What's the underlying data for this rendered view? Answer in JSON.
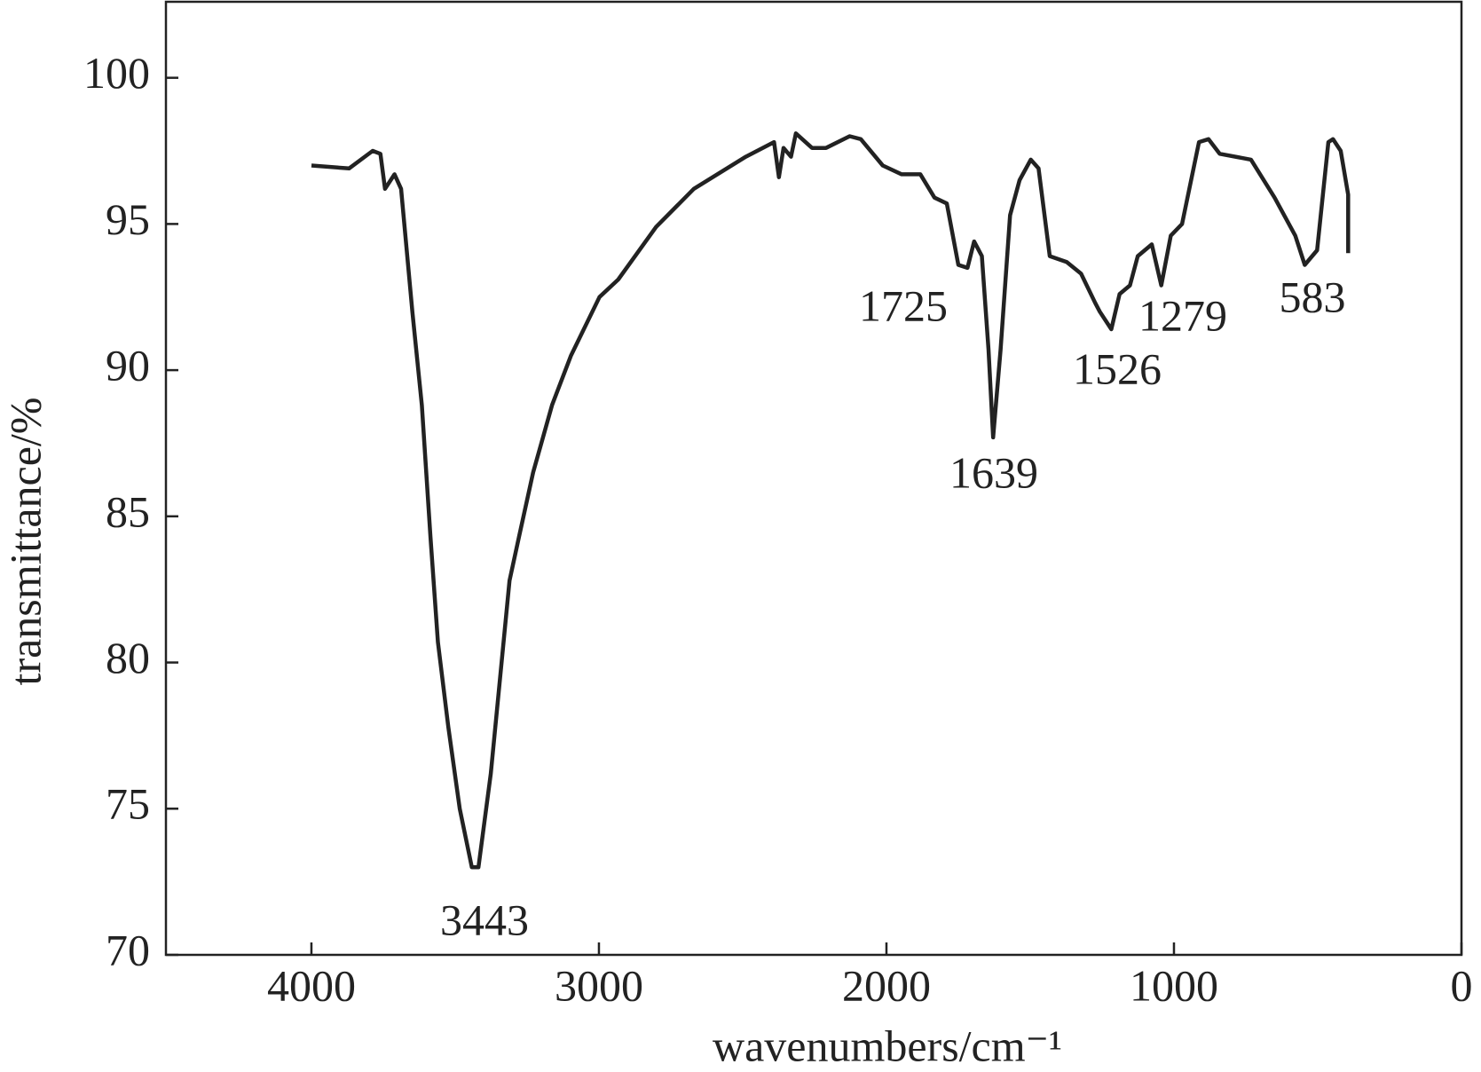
{
  "chart_data": {
    "type": "line",
    "xlabel": "wavenumbers/cm⁻¹",
    "ylabel": "transmittance/%",
    "xlim": [
      4506,
      0
    ],
    "ylim": [
      70,
      102.6
    ],
    "xticks": [
      4000,
      3000,
      2000,
      1000,
      0
    ],
    "yticks": [
      70,
      75,
      80,
      85,
      90,
      95,
      100
    ],
    "x_reversed": true,
    "grid": false,
    "color": "#222222",
    "x": [
      4000,
      3869,
      3787,
      3760,
      3744,
      3711,
      3688,
      3649,
      3616,
      3586,
      3560,
      3524,
      3484,
      3442,
      3419,
      3376,
      3311,
      3278,
      3229,
      3163,
      3097,
      2998,
      2933,
      2801,
      2670,
      2489,
      2391,
      2374,
      2358,
      2332,
      2315,
      2259,
      2210,
      2128,
      2089,
      2013,
      1947,
      1882,
      1833,
      1790,
      1750,
      1718,
      1695,
      1668,
      1645,
      1629,
      1603,
      1570,
      1537,
      1498,
      1471,
      1432,
      1373,
      1323,
      1274,
      1258,
      1218,
      1189,
      1153,
      1126,
      1077,
      1044,
      1011,
      972,
      913,
      880,
      841,
      732,
      650,
      578,
      545,
      502,
      463,
      447,
      420,
      394,
      394
    ],
    "values": [
      97.0,
      96.9,
      97.5,
      97.4,
      96.2,
      96.7,
      96.2,
      92.0,
      88.8,
      84.3,
      80.7,
      77.8,
      75.0,
      73.0,
      73.0,
      76.2,
      82.8,
      84.3,
      86.5,
      88.8,
      90.5,
      92.5,
      93.1,
      94.9,
      96.2,
      97.3,
      97.8,
      96.6,
      97.6,
      97.3,
      98.1,
      97.6,
      97.6,
      98.0,
      97.9,
      97.0,
      96.7,
      96.7,
      95.9,
      95.7,
      93.6,
      93.5,
      94.4,
      93.9,
      90.7,
      87.7,
      90.7,
      95.3,
      96.5,
      97.2,
      96.9,
      93.9,
      93.7,
      93.3,
      92.3,
      92.0,
      91.4,
      92.6,
      92.9,
      93.9,
      94.3,
      92.9,
      94.6,
      95.0,
      97.8,
      97.9,
      97.4,
      97.2,
      95.9,
      94.6,
      93.6,
      94.1,
      97.8,
      97.9,
      97.5,
      96.0,
      94.0
    ],
    "annotations": [
      "3443",
      "1725",
      "1639",
      "1526",
      "1279",
      "583"
    ]
  }
}
